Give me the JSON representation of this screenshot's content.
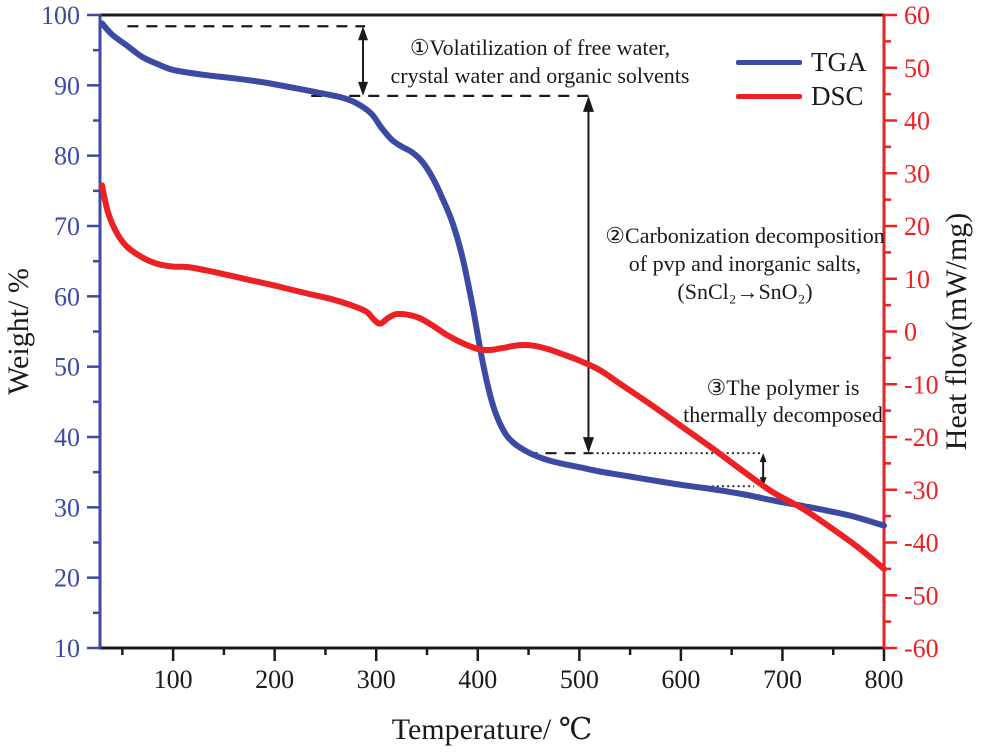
{
  "chart_data": {
    "type": "line",
    "title": "",
    "xlabel": "Temperature/ ℃",
    "ylabel_left": "Weight/ %",
    "ylabel_right": "Heat flow(mW/mg)",
    "x_axis": {
      "min": 28,
      "max": 800,
      "label_start": 100,
      "major_step": 100,
      "minor_step": 50,
      "color": "#1a1a1a"
    },
    "left_axis": {
      "min": 10,
      "max": 100,
      "major_step": 10,
      "minor_step": 5,
      "color": "#3b4aa3"
    },
    "right_axis": {
      "min": -60,
      "max": 60,
      "major_step": 10,
      "minor_step": 5,
      "color": "#ed2024"
    },
    "grid": false,
    "legend": {
      "position": "top-right",
      "items": [
        {
          "label": "TGA",
          "color": "#3b4aa3"
        },
        {
          "label": "DSC",
          "color": "#ed2024"
        }
      ]
    },
    "series": [
      {
        "name": "TGA",
        "axis": "left",
        "color": "#3b4aa3",
        "stroke_width": 6,
        "points": [
          [
            30,
            98.8
          ],
          [
            40,
            97.2
          ],
          [
            55,
            95.6
          ],
          [
            70,
            94.0
          ],
          [
            85,
            93.0
          ],
          [
            100,
            92.2
          ],
          [
            130,
            91.5
          ],
          [
            160,
            91.0
          ],
          [
            190,
            90.4
          ],
          [
            220,
            89.6
          ],
          [
            245,
            88.9
          ],
          [
            265,
            88.3
          ],
          [
            280,
            87.5
          ],
          [
            295,
            86.0
          ],
          [
            305,
            84.0
          ],
          [
            315,
            82.3
          ],
          [
            325,
            81.3
          ],
          [
            335,
            80.5
          ],
          [
            345,
            79.2
          ],
          [
            355,
            77.0
          ],
          [
            365,
            74.0
          ],
          [
            375,
            70.5
          ],
          [
            385,
            65.5
          ],
          [
            395,
            58.5
          ],
          [
            405,
            50.5
          ],
          [
            415,
            44.5
          ],
          [
            425,
            41.0
          ],
          [
            435,
            39.2
          ],
          [
            450,
            37.8
          ],
          [
            465,
            36.9
          ],
          [
            480,
            36.3
          ],
          [
            500,
            35.7
          ],
          [
            520,
            35.1
          ],
          [
            545,
            34.5
          ],
          [
            570,
            33.9
          ],
          [
            600,
            33.2
          ],
          [
            630,
            32.6
          ],
          [
            660,
            31.9
          ],
          [
            690,
            31.0
          ],
          [
            720,
            30.2
          ],
          [
            745,
            29.5
          ],
          [
            770,
            28.7
          ],
          [
            800,
            27.4
          ]
        ]
      },
      {
        "name": "DSC",
        "axis": "right",
        "color": "#ed2024",
        "stroke_width": 6,
        "points": [
          [
            30,
            27.7
          ],
          [
            36,
            22.5
          ],
          [
            45,
            18.5
          ],
          [
            55,
            16.0
          ],
          [
            70,
            14.0
          ],
          [
            85,
            12.8
          ],
          [
            100,
            12.3
          ],
          [
            115,
            12.2
          ],
          [
            140,
            11.3
          ],
          [
            170,
            10.0
          ],
          [
            200,
            8.7
          ],
          [
            230,
            7.3
          ],
          [
            255,
            6.2
          ],
          [
            275,
            5.0
          ],
          [
            290,
            3.8
          ],
          [
            298,
            2.2
          ],
          [
            304,
            1.5
          ],
          [
            312,
            2.6
          ],
          [
            320,
            3.3
          ],
          [
            330,
            3.2
          ],
          [
            342,
            2.6
          ],
          [
            355,
            1.2
          ],
          [
            370,
            -0.7
          ],
          [
            385,
            -2.2
          ],
          [
            400,
            -3.3
          ],
          [
            412,
            -3.5
          ],
          [
            425,
            -3.1
          ],
          [
            440,
            -2.6
          ],
          [
            455,
            -2.7
          ],
          [
            470,
            -3.4
          ],
          [
            485,
            -4.4
          ],
          [
            500,
            -5.5
          ],
          [
            520,
            -7.3
          ],
          [
            540,
            -9.9
          ],
          [
            570,
            -13.8
          ],
          [
            600,
            -17.9
          ],
          [
            630,
            -22.0
          ],
          [
            660,
            -26.3
          ],
          [
            690,
            -30.4
          ],
          [
            720,
            -33.6
          ],
          [
            750,
            -37.5
          ],
          [
            775,
            -41.0
          ],
          [
            800,
            -45.0
          ]
        ]
      }
    ],
    "guides": [
      {
        "axis": "left",
        "level": 98.4,
        "t1": 55,
        "t2": 289,
        "style": "dash"
      },
      {
        "axis": "left",
        "level": 88.5,
        "t1": 236,
        "t2": 510,
        "style": "dash"
      },
      {
        "axis": "left",
        "level": 37.7,
        "t1": 448,
        "t2": 512,
        "style": "dash"
      },
      {
        "axis": "left",
        "level": 37.7,
        "t1": 512,
        "t2": 678,
        "style": "dot"
      },
      {
        "axis": "left",
        "level": 33.0,
        "t1": 620,
        "t2": 672,
        "style": "dot"
      }
    ],
    "arrows": [
      {
        "t": 287,
        "w1": 98.4,
        "w2": 88.5,
        "head_w": 10,
        "head_l": 14
      },
      {
        "t": 509,
        "w1": 88.5,
        "w2": 37.7,
        "head_w": 11,
        "head_l": 16
      },
      {
        "t": 681,
        "w1": 37.7,
        "w2": 33.0,
        "head_w": 7,
        "head_l": 9
      }
    ]
  },
  "annotations": {
    "note1": {
      "lines": [
        "①Volatilization of free water,",
        "crystal water and organic solvents"
      ]
    },
    "note2": {
      "lines": [
        "②Carbonization decomposition",
        "of pvp and inorganic salts,",
        "(SnCl₂→SnO₂)"
      ]
    },
    "note3": {
      "lines": [
        "③The polymer is",
        "thermally decomposed"
      ]
    }
  }
}
